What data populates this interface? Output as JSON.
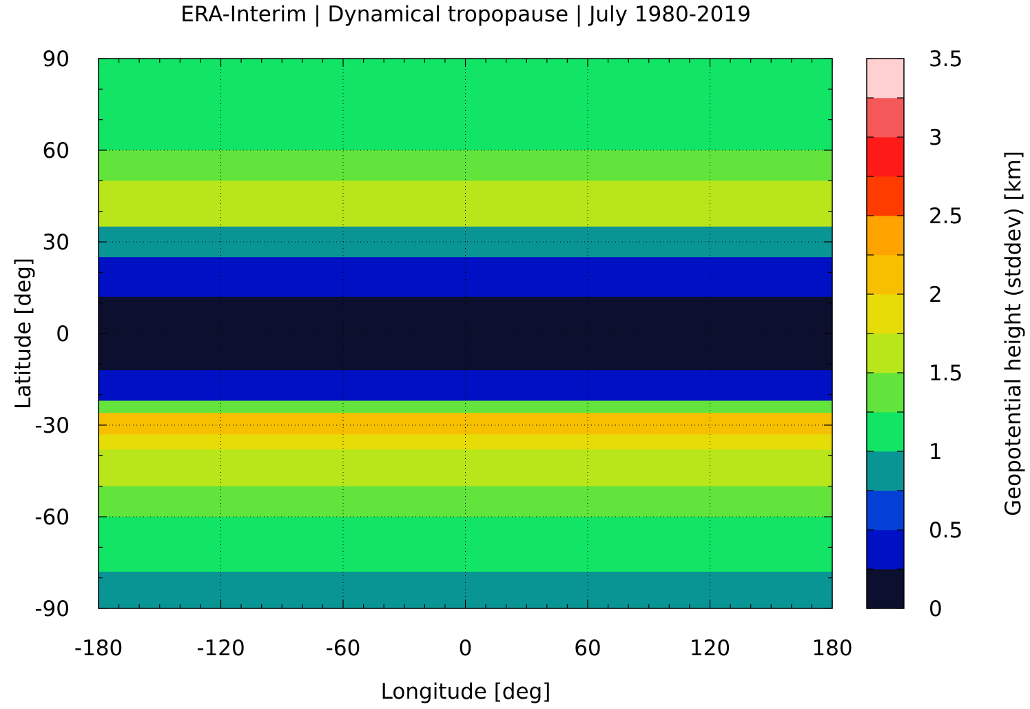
{
  "chart_data": {
    "type": "heatmap",
    "title": "ERA-Interim | Dynamical tropopause | July 1980-2019",
    "xlabel": "Longitude [deg]",
    "ylabel": "Latitude [deg]",
    "xlim": [
      -180,
      180
    ],
    "ylim": [
      -90,
      90
    ],
    "x_ticks": [
      "-180",
      "-120",
      "-60",
      "0",
      "60",
      "120",
      "180"
    ],
    "y_ticks": [
      "90",
      "60",
      "30",
      "0",
      "-30",
      "-60",
      "-90"
    ],
    "grid": true,
    "colorbar": {
      "label": "Geopotential height (stddev) [km]",
      "range": [
        0,
        3.5
      ],
      "step": 0.25,
      "tick_labels": [
        "0",
        "0.5",
        "1",
        "1.5",
        "2",
        "2.5",
        "3",
        "3.5"
      ],
      "colors": [
        "#0c0f2e",
        "#0010c4",
        "#0440d6",
        "#0a9595",
        "#12e466",
        "#62e43c",
        "#b8e61a",
        "#e6dc08",
        "#f6c000",
        "#fda400",
        "#ff3c00",
        "#ff1a1a",
        "#f55858",
        "#ffd0d0"
      ]
    },
    "bands": [
      {
        "lat_range": [
          90,
          80
        ],
        "value": 1.1
      },
      {
        "lat_range": [
          80,
          60
        ],
        "value": 1.0
      },
      {
        "lat_range": [
          60,
          50
        ],
        "value": 1.3
      },
      {
        "lat_range": [
          50,
          35
        ],
        "value": 1.55
      },
      {
        "lat_range": [
          35,
          25
        ],
        "value": 0.9
      },
      {
        "lat_range": [
          25,
          12
        ],
        "value": 0.45
      },
      {
        "lat_range": [
          12,
          -12
        ],
        "value": 0.1
      },
      {
        "lat_range": [
          -12,
          -22
        ],
        "value": 0.4
      },
      {
        "lat_range": [
          -22,
          -26
        ],
        "value": 1.4
      },
      {
        "lat_range": [
          -26,
          -33
        ],
        "value": 2.2
      },
      {
        "lat_range": [
          -33,
          -38
        ],
        "value": 1.9
      },
      {
        "lat_range": [
          -38,
          -50
        ],
        "value": 1.6
      },
      {
        "lat_range": [
          -50,
          -60
        ],
        "value": 1.35
      },
      {
        "lat_range": [
          -60,
          -78
        ],
        "value": 1.15
      },
      {
        "lat_range": [
          -78,
          -90
        ],
        "value": 0.95
      }
    ]
  }
}
